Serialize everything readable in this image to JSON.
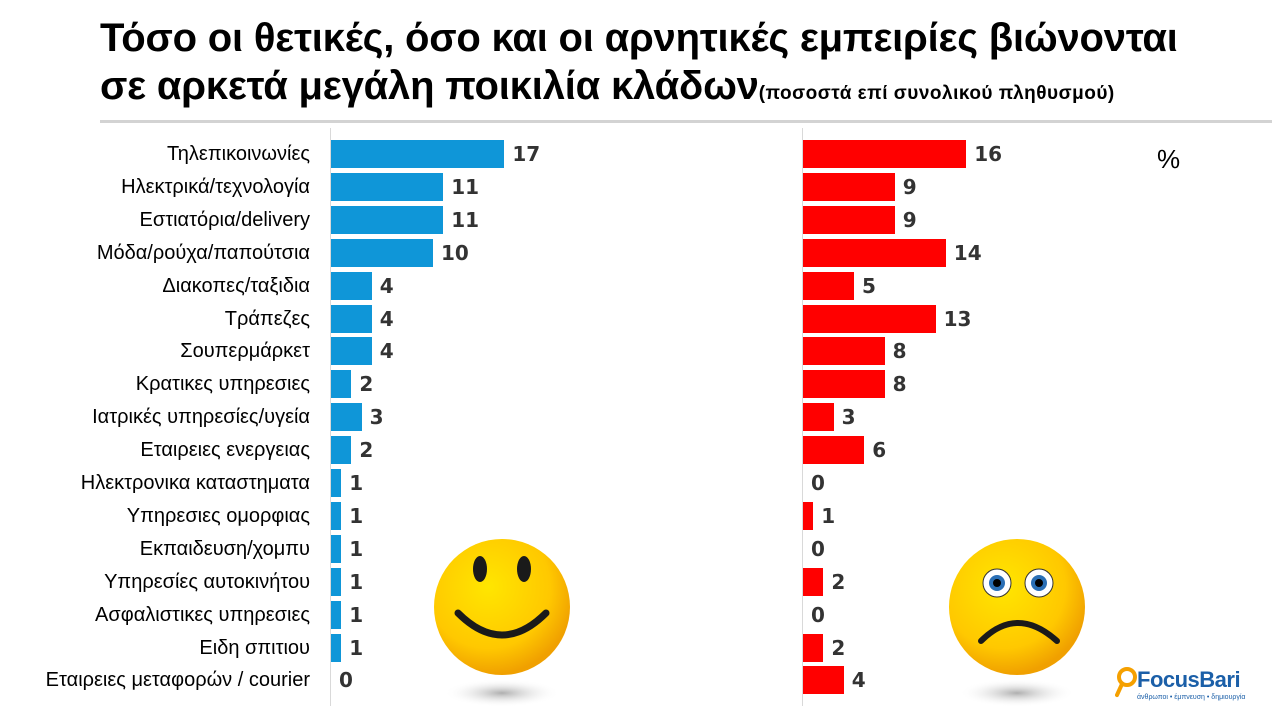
{
  "title_line1": "Τόσο οι θετικές, όσο και οι αρνητικές εμπειρίες βιώνονται",
  "title_line2": "σε αρκετά μεγάλη ποικιλία κλάδων",
  "subtitle": "(ποσοστά επί συνολικού πληθυσμού)",
  "unit": "%",
  "logo_text": "FocusBari",
  "logo_tagline": "άνθρωποι • έμπνευση • δημιουργία",
  "chart_data": {
    "type": "bar",
    "orientation": "horizontal",
    "categories": [
      "Τηλεπικοινωνίες",
      "Ηλεκτρικά/τεχνολογία",
      "Εστιατόρια/delivery",
      "Μόδα/ρούχα/παπούτσια",
      "Διακοπες/ταξιδια",
      "Τράπεζες",
      "Σουπερμάρκετ",
      "Κρατικες υπηρεσιες",
      "Ιατρικές υπηρεσίες/υγεία",
      "Εταιρειες ενεργειας",
      "Ηλεκτρονικα καταστηματα",
      "Υπηρεσιες ομορφιας",
      "Εκπαιδευση/χομπυ",
      "Υπηρεσίες αυτοκινήτου",
      "Ασφαλιστικες υπηρεσιες",
      "Ειδη σπιτιου",
      "Εταιρειες μεταφορών / courier"
    ],
    "series": [
      {
        "color": "#0f96d8",
        "values": [
          17,
          11,
          11,
          10,
          4,
          4,
          4,
          2,
          3,
          2,
          1,
          1,
          1,
          1,
          1,
          1,
          0
        ]
      },
      {
        "color": "#ff0000",
        "values": [
          16,
          9,
          9,
          14,
          5,
          13,
          8,
          8,
          3,
          6,
          0,
          1,
          0,
          2,
          0,
          2,
          4
        ]
      }
    ],
    "icons": [
      "smiley-face-icon",
      "sad-face-icon"
    ]
  }
}
